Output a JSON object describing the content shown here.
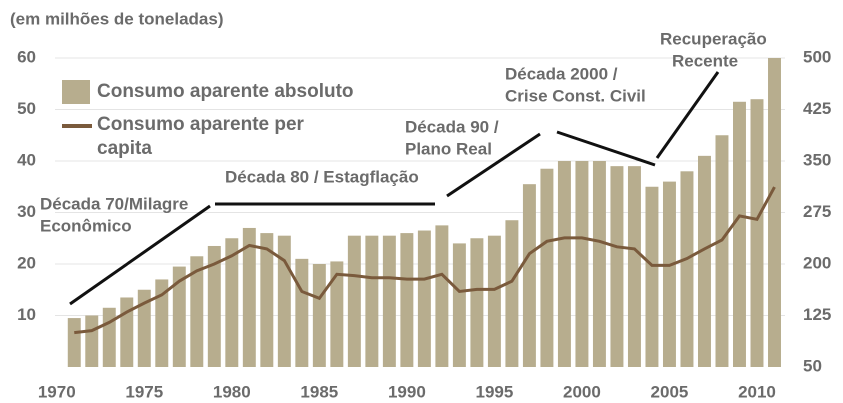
{
  "chart_data": {
    "type": "bar-line",
    "ylabel": "(em milhões de toneladas)",
    "x": [
      1971,
      1972,
      1973,
      1974,
      1975,
      1976,
      1977,
      1978,
      1979,
      1980,
      1981,
      1982,
      1983,
      1984,
      1985,
      1986,
      1987,
      1988,
      1989,
      1990,
      1991,
      1992,
      1993,
      1994,
      1995,
      1996,
      1997,
      1998,
      1999,
      2000,
      2001,
      2002,
      2003,
      2004,
      2005,
      2006,
      2007,
      2008,
      2009,
      2010,
      2011
    ],
    "series": [
      {
        "name": "Consumo aparente absoluto",
        "type": "bar",
        "color": "#b7ad8e",
        "values": [
          9.5,
          10,
          11.5,
          13.5,
          15,
          17,
          19.5,
          21.5,
          23.5,
          25,
          27,
          26,
          25.5,
          21,
          20,
          20.5,
          25.5,
          25.5,
          25.5,
          26,
          26.5,
          27.5,
          24,
          25,
          25.5,
          28.5,
          35.5,
          38.5,
          40,
          40,
          40,
          39,
          39,
          35,
          36,
          38,
          41,
          45,
          51.5,
          52,
          60
        ]
      },
      {
        "name": "Consumo aparente per capita",
        "type": "line",
        "axis": "y2",
        "color": "#7a5a3c",
        "values": [
          100,
          103,
          115,
          130,
          143,
          155,
          175,
          190,
          200,
          212,
          227,
          222,
          205,
          160,
          150,
          185,
          183,
          180,
          180,
          178,
          178,
          185,
          160,
          163,
          163,
          175,
          215,
          233,
          238,
          238,
          233,
          225,
          222,
          198,
          198,
          208,
          222,
          235,
          270,
          265,
          312
        ]
      }
    ],
    "xlim": [
      1969.9,
      2011.6
    ],
    "xticks": [
      1970,
      1975,
      1980,
      1985,
      1990,
      1995,
      2000,
      2005,
      2010
    ],
    "ylim": [
      0,
      60
    ],
    "yticks": [
      10,
      20,
      30,
      40,
      50,
      60
    ],
    "y2lim": [
      50,
      500
    ],
    "y2ticks": [
      50,
      125,
      200,
      275,
      350,
      425,
      500
    ],
    "grid": true,
    "annotations": [
      {
        "lines": [
          "Década 70/Milagre",
          "Econômico"
        ]
      },
      {
        "lines": [
          "Década  80 / Estagflação"
        ]
      },
      {
        "lines": [
          "Década 90 /",
          "Plano Real"
        ]
      },
      {
        "lines": [
          "Década 2000 /",
          "Crise Const. Civil"
        ]
      },
      {
        "lines": [
          "Recuperação",
          "Recente"
        ]
      }
    ]
  }
}
